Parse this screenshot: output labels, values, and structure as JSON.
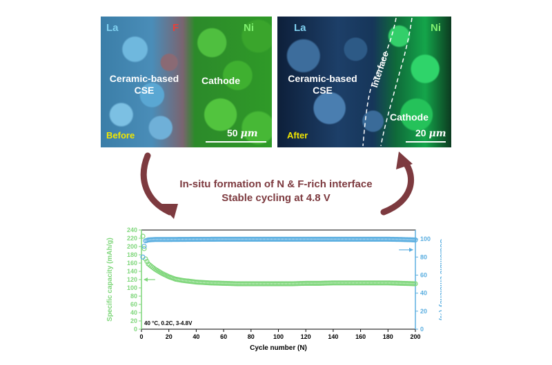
{
  "panels": {
    "before": {
      "label_la": "La",
      "label_f": "F",
      "label_ni": "Ni",
      "region_left": "Ceramic-based\nCSE",
      "region_right": "Cathode",
      "state": "Before",
      "scale_value": "50",
      "scale_unit": "μm"
    },
    "after": {
      "label_la": "La",
      "label_ni": "Ni",
      "region_left": "Ceramic-based\nCSE",
      "region_mid": "Interface",
      "region_right": "Cathode",
      "state": "After",
      "scale_value": "20",
      "scale_unit": "μm"
    }
  },
  "caption": {
    "line1": "In-situ formation of N & F-rich interface",
    "line2": "Stable cycling at 4.8 V"
  },
  "colors": {
    "arrow": "#7d3a3f",
    "capacity": "#7ed67a",
    "efficiency": "#5aaee0",
    "la": "#7fd0f0",
    "f": "#e8403a",
    "ni": "#7ff070",
    "state": "#f2e600"
  },
  "chart_data": {
    "type": "scatter",
    "xlabel": "Cycle number (N)",
    "ylabel": "Specific capacity (mAh/g)",
    "y2label": "Coulombic efficiency (%)",
    "xlim": [
      0,
      200
    ],
    "ylim": [
      0,
      240
    ],
    "y2lim": [
      0,
      110
    ],
    "xticks": [
      0,
      20,
      40,
      60,
      80,
      100,
      120,
      140,
      160,
      180,
      200
    ],
    "yticks": [
      0,
      20,
      40,
      60,
      80,
      100,
      120,
      140,
      160,
      180,
      200,
      220,
      240
    ],
    "y2ticks": [
      0,
      20,
      40,
      60,
      80,
      100
    ],
    "annotation": "40 °C, 0.2C, 3-4.8V",
    "series": [
      {
        "axis": "left",
        "x": [
          1,
          2,
          3,
          5,
          8,
          10,
          15,
          20,
          25,
          30,
          40,
          50,
          60,
          70,
          80,
          90,
          100,
          110,
          120,
          130,
          140,
          150,
          160,
          170,
          180,
          190,
          200
        ],
        "values": [
          225,
          195,
          170,
          158,
          150,
          145,
          135,
          127,
          121,
          118,
          114,
          112,
          111,
          110,
          110,
          110,
          110,
          110,
          111,
          111,
          112,
          112,
          112,
          112,
          112,
          111,
          110
        ]
      },
      {
        "axis": "right",
        "x": [
          1,
          2,
          3,
          5,
          10,
          20,
          40,
          60,
          80,
          100,
          120,
          140,
          160,
          180,
          190,
          200
        ],
        "values": [
          80,
          92,
          98,
          99,
          99.5,
          99.5,
          99.7,
          99.8,
          99.8,
          99.8,
          99.8,
          99.8,
          99.8,
          99.8,
          99.5,
          99
        ]
      }
    ]
  }
}
